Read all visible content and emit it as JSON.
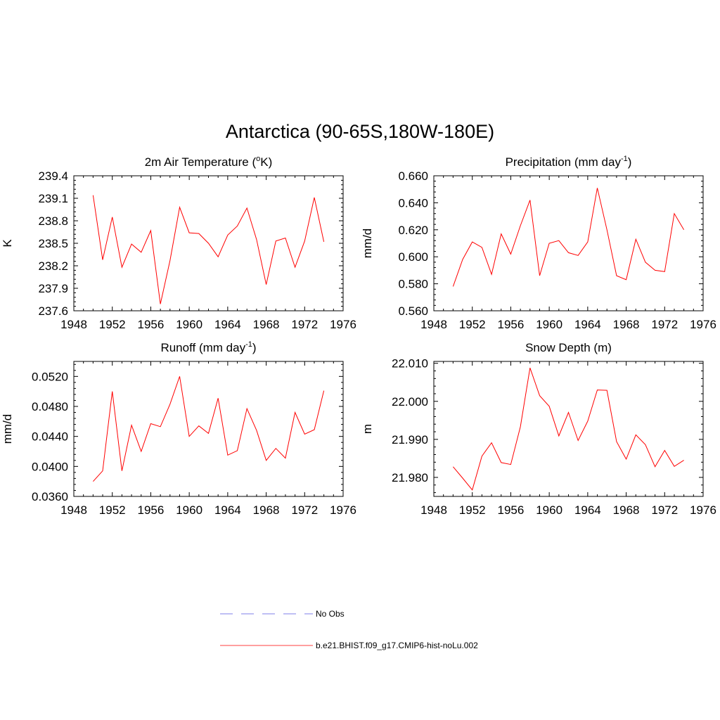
{
  "page": {
    "title": "Antarctica (90-65S,180W-180E)"
  },
  "legend": {
    "placement": "bottom-center",
    "entries": [
      {
        "label": "No Obs",
        "color": "#9999ee",
        "dash": "dashed"
      },
      {
        "label": "b.e21.BHIST.f09_g17.CMIP6-hist-noLu.002",
        "color": "#ff6666",
        "dash": "solid"
      }
    ]
  },
  "chart_data": [
    {
      "type": "line",
      "title_main": "2m Air Temperature (",
      "title_sup": "o",
      "title_end": "K)",
      "ylabel": "K",
      "xlim": [
        1948,
        1976
      ],
      "xticks": [
        "1948",
        "1952",
        "1956",
        "1960",
        "1964",
        "1968",
        "1972",
        "1976"
      ],
      "ylim": [
        237.6,
        239.4
      ],
      "yticks": [
        "237.6",
        "237.9",
        "238.2",
        "238.5",
        "238.8",
        "239.1",
        "239.4"
      ],
      "series": [
        {
          "color": "#ff0000",
          "x": [
            1950,
            1951,
            1952,
            1953,
            1954,
            1955,
            1956,
            1957,
            1958,
            1959,
            1960,
            1961,
            1962,
            1963,
            1964,
            1965,
            1966,
            1967,
            1968,
            1969,
            1970,
            1971,
            1972,
            1973,
            1974
          ],
          "y": [
            239.14,
            238.28,
            238.85,
            238.18,
            238.49,
            238.38,
            238.67,
            237.69,
            238.27,
            238.98,
            238.64,
            238.63,
            238.5,
            238.32,
            238.61,
            238.73,
            238.97,
            238.55,
            237.95,
            238.53,
            238.57,
            238.18,
            238.53,
            239.11,
            238.52
          ]
        }
      ]
    },
    {
      "type": "line",
      "title_main": "Precipitation (mm day",
      "title_sup": "-1",
      "title_end": ")",
      "ylabel": "mm/d",
      "xlim": [
        1948,
        1976
      ],
      "xticks": [
        "1948",
        "1952",
        "1956",
        "1960",
        "1964",
        "1968",
        "1972",
        "1976"
      ],
      "ylim": [
        0.56,
        0.66
      ],
      "yticks": [
        "0.560",
        "0.580",
        "0.600",
        "0.620",
        "0.640",
        "0.660"
      ],
      "series": [
        {
          "color": "#ff0000",
          "x": [
            1950,
            1951,
            1952,
            1953,
            1954,
            1955,
            1956,
            1957,
            1958,
            1959,
            1960,
            1961,
            1962,
            1963,
            1964,
            1965,
            1966,
            1967,
            1968,
            1969,
            1970,
            1971,
            1972,
            1973,
            1974
          ],
          "y": [
            0.578,
            0.598,
            0.611,
            0.607,
            0.587,
            0.617,
            0.602,
            0.623,
            0.642,
            0.586,
            0.61,
            0.612,
            0.603,
            0.601,
            0.611,
            0.651,
            0.62,
            0.586,
            0.583,
            0.613,
            0.596,
            0.59,
            0.589,
            0.632,
            0.62
          ]
        }
      ]
    },
    {
      "type": "line",
      "title_main": "Runoff (mm day",
      "title_sup": "-1",
      "title_end": ")",
      "ylabel": "mm/d",
      "xlim": [
        1948,
        1976
      ],
      "xticks": [
        "1948",
        "1952",
        "1956",
        "1960",
        "1964",
        "1968",
        "1972",
        "1976"
      ],
      "ylim": [
        0.036,
        0.054
      ],
      "yticks": [
        "0.0360",
        "0.0400",
        "0.0440",
        "0.0480",
        "0.0520"
      ],
      "series": [
        {
          "color": "#ff0000",
          "x": [
            1950,
            1951,
            1952,
            1953,
            1954,
            1955,
            1956,
            1957,
            1958,
            1959,
            1960,
            1961,
            1962,
            1963,
            1964,
            1965,
            1966,
            1967,
            1968,
            1969,
            1970,
            1971,
            1972,
            1973,
            1974
          ],
          "y": [
            0.038,
            0.0394,
            0.05,
            0.0394,
            0.0455,
            0.042,
            0.0457,
            0.0453,
            0.0483,
            0.052,
            0.044,
            0.0454,
            0.0444,
            0.0491,
            0.0415,
            0.0421,
            0.0477,
            0.0448,
            0.0408,
            0.0424,
            0.0411,
            0.0472,
            0.0443,
            0.0449,
            0.0501
          ]
        }
      ]
    },
    {
      "type": "line",
      "title_main": "Snow Depth (m)",
      "title_sup": "",
      "title_end": "",
      "ylabel": "m",
      "xlim": [
        1948,
        1976
      ],
      "xticks": [
        "1948",
        "1952",
        "1956",
        "1960",
        "1964",
        "1968",
        "1972",
        "1976"
      ],
      "ylim": [
        21.975,
        22.0105
      ],
      "yticks": [
        "21.980",
        "21.990",
        "22.000",
        "22.010"
      ],
      "series": [
        {
          "color": "#ff0000",
          "x": [
            1950,
            1951,
            1952,
            1953,
            1954,
            1955,
            1956,
            1957,
            1958,
            1959,
            1960,
            1961,
            1962,
            1963,
            1964,
            1965,
            1966,
            1967,
            1968,
            1969,
            1970,
            1971,
            1972,
            1973,
            1974
          ],
          "y": [
            21.9828,
            21.9798,
            21.9767,
            21.9856,
            21.9891,
            21.9839,
            21.9834,
            21.9933,
            22.0088,
            22.0015,
            21.9987,
            21.9909,
            21.9971,
            21.9897,
            21.9948,
            22.003,
            22.0029,
            21.9894,
            21.9848,
            21.9912,
            21.9886,
            21.9828,
            21.9871,
            21.9829,
            21.9845
          ]
        }
      ]
    }
  ]
}
